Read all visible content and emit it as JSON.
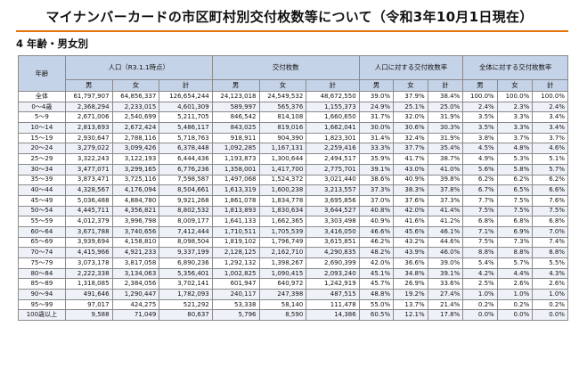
{
  "title": "マイナンバーカードの市区町村別交付枚数等について（令和3年10月1日現在）",
  "section": "4 年齢・男女別",
  "table": {
    "age_header": "年齢",
    "group_headers": [
      "人口（R3.1.1時点）",
      "交付枚数",
      "人口に対する交付枚数率",
      "全体に対する交付枚数率"
    ],
    "sub_headers": [
      "男",
      "女",
      "計",
      "男",
      "女",
      "計",
      "男",
      "女",
      "計",
      "男",
      "女",
      "計"
    ],
    "rows": [
      [
        "全体",
        "61,797,907",
        "64,856,337",
        "126,654,244",
        "24,123,018",
        "24,549,532",
        "48,672,550",
        "39.0%",
        "37.9%",
        "38.4%",
        "100.0%",
        "100.0%",
        "100.0%"
      ],
      [
        "0～4歳",
        "2,368,294",
        "2,233,015",
        "4,601,309",
        "589,997",
        "565,376",
        "1,155,373",
        "24.9%",
        "25.1%",
        "25.0%",
        "2.4%",
        "2.3%",
        "2.4%"
      ],
      [
        "5～9",
        "2,671,006",
        "2,540,699",
        "5,211,705",
        "846,542",
        "814,108",
        "1,660,650",
        "31.7%",
        "32.0%",
        "31.9%",
        "3.5%",
        "3.3%",
        "3.4%"
      ],
      [
        "10～14",
        "2,813,693",
        "2,672,424",
        "5,486,117",
        "843,025",
        "819,016",
        "1,662,041",
        "30.0%",
        "30.6%",
        "30.3%",
        "3.5%",
        "3.3%",
        "3.4%"
      ],
      [
        "15～19",
        "2,930,647",
        "2,788,116",
        "5,718,763",
        "918,911",
        "904,390",
        "1,823,301",
        "31.4%",
        "32.4%",
        "31.9%",
        "3.8%",
        "3.7%",
        "3.7%"
      ],
      [
        "20～24",
        "3,279,022",
        "3,099,426",
        "6,378,448",
        "1,092,285",
        "1,167,131",
        "2,259,416",
        "33.3%",
        "37.7%",
        "35.4%",
        "4.5%",
        "4.8%",
        "4.6%"
      ],
      [
        "25～29",
        "3,322,243",
        "3,122,193",
        "6,444,436",
        "1,193,873",
        "1,300,644",
        "2,494,517",
        "35.9%",
        "41.7%",
        "38.7%",
        "4.9%",
        "5.3%",
        "5.1%"
      ],
      [
        "30～34",
        "3,477,071",
        "3,299,165",
        "6,776,236",
        "1,358,001",
        "1,417,700",
        "2,775,701",
        "39.1%",
        "43.0%",
        "41.0%",
        "5.6%",
        "5.8%",
        "5.7%"
      ],
      [
        "35～39",
        "3,873,471",
        "3,725,116",
        "7,598,587",
        "1,497,068",
        "1,524,372",
        "3,021,440",
        "38.6%",
        "40.9%",
        "39.8%",
        "6.2%",
        "6.2%",
        "6.2%"
      ],
      [
        "40～44",
        "4,328,567",
        "4,176,094",
        "8,504,661",
        "1,613,319",
        "1,600,238",
        "3,213,557",
        "37.3%",
        "38.3%",
        "37.8%",
        "6.7%",
        "6.5%",
        "6.6%"
      ],
      [
        "45～49",
        "5,036,488",
        "4,884,780",
        "9,921,268",
        "1,861,078",
        "1,834,778",
        "3,695,856",
        "37.0%",
        "37.6%",
        "37.3%",
        "7.7%",
        "7.5%",
        "7.6%"
      ],
      [
        "50～54",
        "4,445,711",
        "4,356,821",
        "8,802,532",
        "1,813,893",
        "1,830,634",
        "3,644,527",
        "40.8%",
        "42.0%",
        "41.4%",
        "7.5%",
        "7.5%",
        "7.5%"
      ],
      [
        "55～59",
        "4,012,379",
        "3,996,798",
        "8,009,177",
        "1,641,133",
        "1,662,365",
        "3,303,498",
        "40.9%",
        "41.6%",
        "41.2%",
        "6.8%",
        "6.8%",
        "6.8%"
      ],
      [
        "60～64",
        "3,671,788",
        "3,740,656",
        "7,412,444",
        "1,710,511",
        "1,705,539",
        "3,416,050",
        "46.6%",
        "45.6%",
        "46.1%",
        "7.1%",
        "6.9%",
        "7.0%"
      ],
      [
        "65～69",
        "3,939,694",
        "4,158,810",
        "8,098,504",
        "1,819,102",
        "1,796,749",
        "3,615,851",
        "46.2%",
        "43.2%",
        "44.6%",
        "7.5%",
        "7.3%",
        "7.4%"
      ],
      [
        "70～74",
        "4,415,966",
        "4,921,233",
        "9,337,199",
        "2,128,125",
        "2,162,710",
        "4,290,835",
        "48.2%",
        "43.9%",
        "46.0%",
        "8.8%",
        "8.8%",
        "8.8%"
      ],
      [
        "75～79",
        "3,073,178",
        "3,817,058",
        "6,890,236",
        "1,292,132",
        "1,398,267",
        "2,690,399",
        "42.0%",
        "36.6%",
        "39.0%",
        "5.4%",
        "5.7%",
        "5.5%"
      ],
      [
        "80～84",
        "2,222,338",
        "3,134,063",
        "5,356,401",
        "1,002,825",
        "1,090,415",
        "2,093,240",
        "45.1%",
        "34.8%",
        "39.1%",
        "4.2%",
        "4.4%",
        "4.3%"
      ],
      [
        "85～89",
        "1,318,085",
        "2,384,056",
        "3,702,141",
        "601,947",
        "640,972",
        "1,242,919",
        "45.7%",
        "26.9%",
        "33.6%",
        "2.5%",
        "2.6%",
        "2.6%"
      ],
      [
        "90～94",
        "491,646",
        "1,290,447",
        "1,782,093",
        "240,117",
        "247,398",
        "487,515",
        "48.8%",
        "19.2%",
        "27.4%",
        "1.0%",
        "1.0%",
        "1.0%"
      ],
      [
        "95～99",
        "97,017",
        "424,275",
        "521,292",
        "53,338",
        "58,140",
        "111,478",
        "55.0%",
        "13.7%",
        "21.4%",
        "0.2%",
        "0.2%",
        "0.2%"
      ],
      [
        "100歳以上",
        "9,588",
        "71,049",
        "80,637",
        "5,796",
        "8,590",
        "14,386",
        "60.5%",
        "12.1%",
        "17.8%",
        "0.0%",
        "0.0%",
        "0.0%"
      ]
    ]
  },
  "colors": {
    "accent_rule": "#e8730c",
    "header_bg": "#c5d3e8",
    "stripe_bg": "#eef2f8"
  }
}
